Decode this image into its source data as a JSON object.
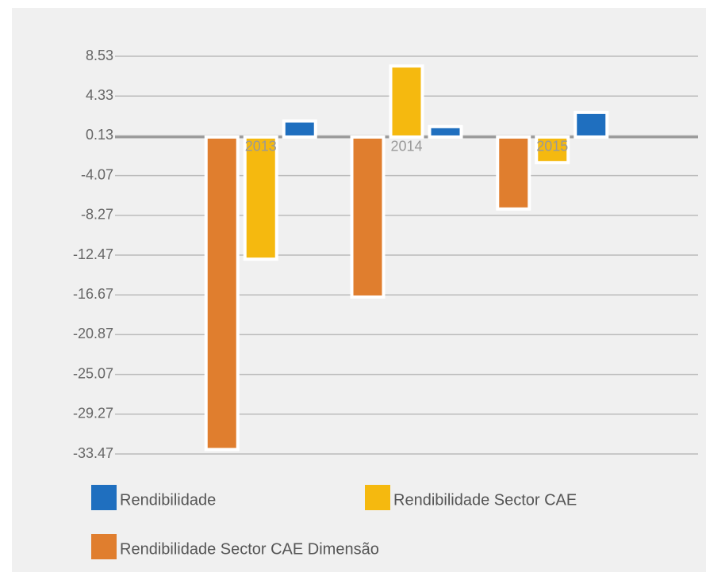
{
  "chart_data": {
    "type": "bar",
    "categories": [
      "2013",
      "2014",
      "2015"
    ],
    "series": [
      {
        "name": "Rendibilidade Sector CAE Dimensão",
        "color": "#e07e2e",
        "values": [
          -33.0,
          -16.9,
          -7.6
        ]
      },
      {
        "name": "Rendibilidade Sector CAE",
        "color": "#f5b90f",
        "values": [
          -12.9,
          7.5,
          -2.7
        ]
      },
      {
        "name": "Rendibilidade",
        "color": "#1f6fbf",
        "values": [
          1.7,
          1.1,
          2.6
        ]
      }
    ],
    "legend_order": [
      2,
      1,
      0
    ],
    "ylim": [
      -33.47,
      8.53
    ],
    "yticks": [
      8.53,
      4.33,
      0.13,
      -4.07,
      -8.27,
      -12.47,
      -16.67,
      -20.87,
      -25.07,
      -29.27,
      -33.47
    ],
    "grid": true
  }
}
